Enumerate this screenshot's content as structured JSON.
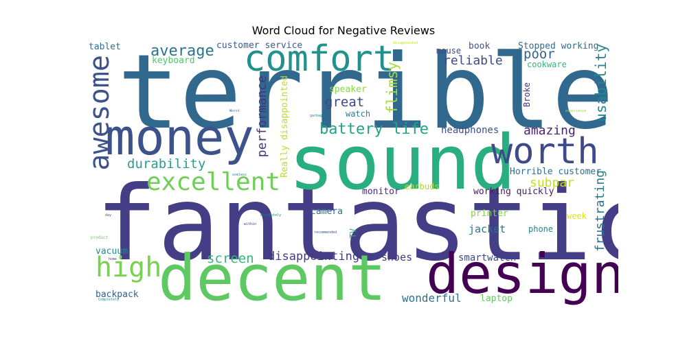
{
  "title": "Word Cloud for Negative Reviews",
  "words": [
    {
      "text": "terrible",
      "color": "#31688e"
    },
    {
      "text": "fantastic",
      "color": "#433e85"
    },
    {
      "text": "sound",
      "color": "#29af7f"
    },
    {
      "text": "decent",
      "color": "#5ec962"
    },
    {
      "text": "design",
      "color": "#440154"
    },
    {
      "text": "money",
      "color": "#3b528b"
    },
    {
      "text": "comfort",
      "color": "#21918c"
    },
    {
      "text": "awesome",
      "color": "#3b528b"
    },
    {
      "text": "worth",
      "color": "#3e4a89"
    },
    {
      "text": "excellent",
      "color": "#6ece58"
    },
    {
      "text": "high",
      "color": "#7ad151"
    },
    {
      "text": "battery life",
      "color": "#20a386"
    },
    {
      "text": "durability",
      "color": "#2a9d8b"
    },
    {
      "text": "average",
      "color": "#2c728e"
    },
    {
      "text": "reliable",
      "color": "#3e4989"
    },
    {
      "text": "poor",
      "color": "#33638d"
    },
    {
      "text": "great",
      "color": "#404688"
    },
    {
      "text": "amazing",
      "color": "#482475"
    },
    {
      "text": "usability",
      "color": "#24868e"
    },
    {
      "text": "performance",
      "color": "#46337e"
    },
    {
      "text": "flimsy",
      "color": "#a8db34"
    },
    {
      "text": "screen",
      "color": "#35b779"
    },
    {
      "text": "disappointing",
      "color": "#443983"
    },
    {
      "text": "subpar",
      "color": "#c2df23"
    },
    {
      "text": "frustrating",
      "color": "#2a788e"
    },
    {
      "text": "wonderful",
      "color": "#2d708e"
    },
    {
      "text": "Really disappointed",
      "color": "#b5de2b"
    },
    {
      "text": "customer service",
      "color": "#38598c"
    },
    {
      "text": "keyboard",
      "color": "#52c569"
    },
    {
      "text": "tablet",
      "color": "#2e6e8e"
    },
    {
      "text": "mouse",
      "color": "#3f4788"
    },
    {
      "text": "book",
      "color": "#39568c"
    },
    {
      "text": "Stopped working",
      "color": "#2f6c8e"
    },
    {
      "text": "cookware",
      "color": "#34b679"
    },
    {
      "text": "Broke",
      "color": "#472f7d"
    },
    {
      "text": "speaker",
      "color": "#8bd646"
    },
    {
      "text": "watch",
      "color": "#26828e"
    },
    {
      "text": "headphones",
      "color": "#3b518b"
    },
    {
      "text": "Horrible customer",
      "color": "#2d708e"
    },
    {
      "text": "monitor",
      "color": "#472d7b"
    },
    {
      "text": "earbuds",
      "color": "#addc30"
    },
    {
      "text": "working quickly",
      "color": "#48186a"
    },
    {
      "text": "camera",
      "color": "#2f6b8e"
    },
    {
      "text": "printer",
      "color": "#7fd34e"
    },
    {
      "text": "jacket",
      "color": "#2e6f8e"
    },
    {
      "text": "phone",
      "color": "#25858e"
    },
    {
      "text": "week",
      "color": "#dde318"
    },
    {
      "text": "TV",
      "color": "#22a785"
    },
    {
      "text": "vacuum",
      "color": "#24868e"
    },
    {
      "text": "shoes",
      "color": "#453781"
    },
    {
      "text": "smartwatch",
      "color": "#3f4889"
    },
    {
      "text": "backpack",
      "color": "#355f8d"
    },
    {
      "text": "laptop",
      "color": "#63cb5f"
    },
    {
      "text": "Worst",
      "color": "#31688e"
    },
    {
      "text": "garbage",
      "color": "#277f8e"
    },
    {
      "text": "experience",
      "color": "#a0da39"
    },
    {
      "text": "useless",
      "color": "#2c728e"
    },
    {
      "text": "day",
      "color": "#3a548c"
    },
    {
      "text": "within",
      "color": "#46307e"
    },
    {
      "text": "Absolutely",
      "color": "#2a788e"
    },
    {
      "text": "recommended",
      "color": "#3b528b"
    },
    {
      "text": "product",
      "color": "#6ece58"
    },
    {
      "text": "home",
      "color": "#414487"
    },
    {
      "text": "Completely",
      "color": "#20928c"
    },
    {
      "text": "disappointed",
      "color": "#c8e020"
    }
  ]
}
